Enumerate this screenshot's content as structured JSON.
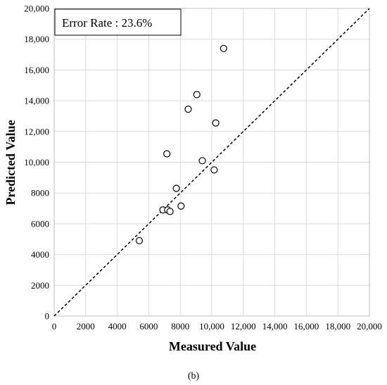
{
  "chart_data": {
    "type": "scatter",
    "xlabel": "Measured Value",
    "ylabel": "Predicted Value",
    "xlim": [
      0,
      20000
    ],
    "ylim": [
      0,
      20000
    ],
    "x_ticks": [
      "0",
      "2000",
      "4000",
      "6000",
      "8000",
      "10,000",
      "12,000",
      "14,000",
      "16,000",
      "18,000",
      "20,000"
    ],
    "y_ticks": [
      "0",
      "2000",
      "4000",
      "6000",
      "8000",
      "10,000",
      "12,000",
      "14,000",
      "16,000",
      "18,000",
      "20,000"
    ],
    "grid": true,
    "reference_line": "y = x",
    "annotation": "Error Rate : 23.6%",
    "caption": "(b)",
    "points": [
      {
        "x": 5400,
        "y": 4900
      },
      {
        "x": 6900,
        "y": 6900
      },
      {
        "x": 7200,
        "y": 6900
      },
      {
        "x": 7350,
        "y": 6800
      },
      {
        "x": 8050,
        "y": 7150
      },
      {
        "x": 7750,
        "y": 8300
      },
      {
        "x": 7150,
        "y": 10550
      },
      {
        "x": 9400,
        "y": 10100
      },
      {
        "x": 10150,
        "y": 9500
      },
      {
        "x": 8500,
        "y": 13450
      },
      {
        "x": 9050,
        "y": 14400
      },
      {
        "x": 10250,
        "y": 12550
      },
      {
        "x": 10750,
        "y": 17400
      }
    ]
  }
}
